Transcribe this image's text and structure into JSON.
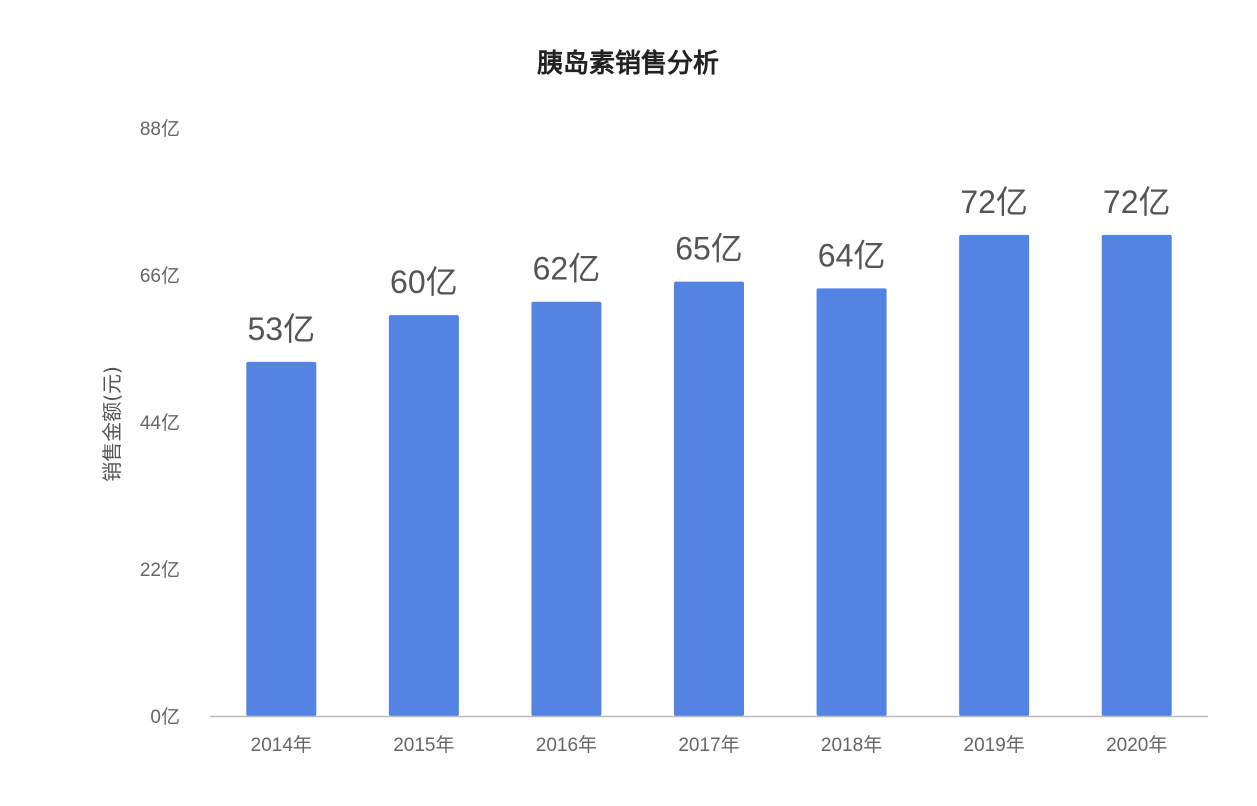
{
  "chart_data": {
    "type": "bar",
    "title": "胰岛素销售分析",
    "xlabel": "",
    "ylabel": "销售金额(元)",
    "categories": [
      "2014年",
      "2015年",
      "2016年",
      "2017年",
      "2018年",
      "2019年",
      "2020年"
    ],
    "values": [
      53,
      60,
      62,
      65,
      64,
      72,
      72
    ],
    "data_labels": [
      "53亿",
      "60亿",
      "62亿",
      "65亿",
      "64亿",
      "72亿",
      "72亿"
    ],
    "ylim": [
      0,
      88
    ],
    "yticks": [
      0,
      22,
      44,
      66,
      88
    ],
    "ytick_labels": [
      "0亿",
      "22亿",
      "44亿",
      "66亿",
      "88亿"
    ],
    "grid": false,
    "legend": "none",
    "bar_color": "#5383E3",
    "axis_color": "#BBBBBB"
  }
}
